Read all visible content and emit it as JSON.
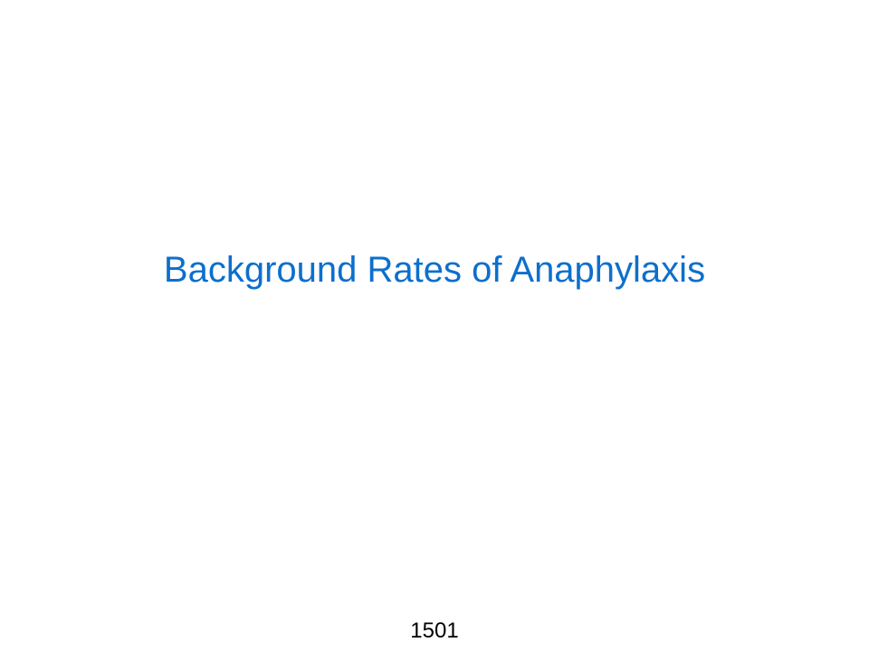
{
  "slide": {
    "title": "Background Rates of Anaphylaxis",
    "page_number": "1501",
    "colors": {
      "title": "#0d6fcc",
      "page_number": "#000000",
      "background": "#ffffff"
    }
  }
}
